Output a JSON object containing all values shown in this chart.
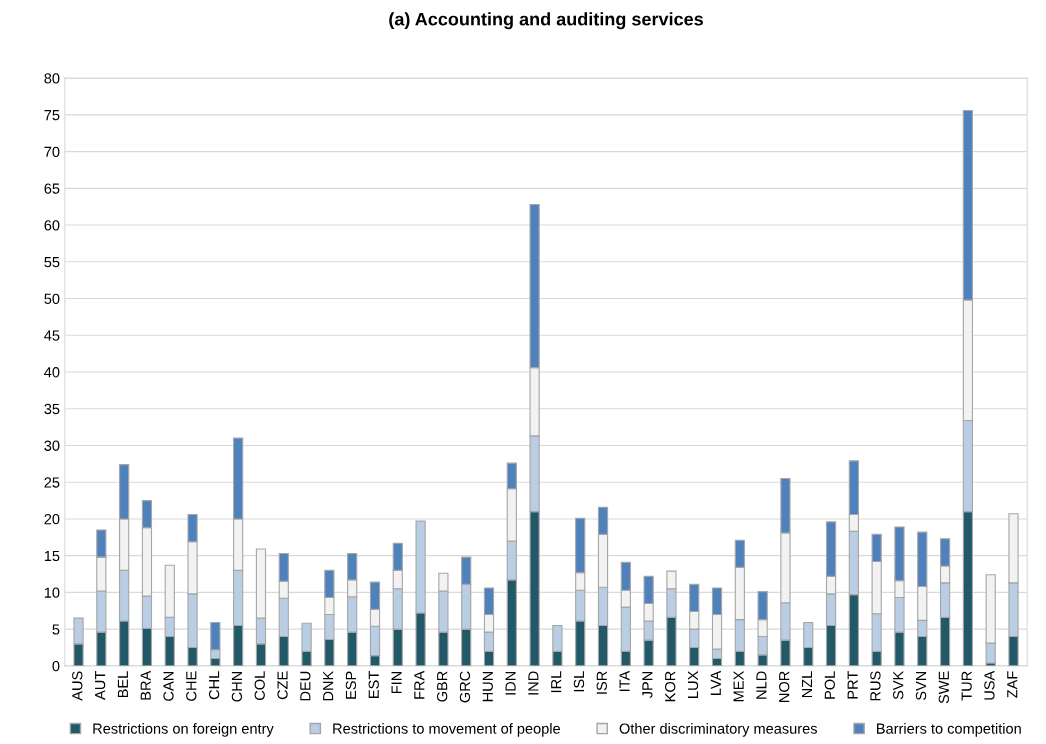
{
  "chart_data": {
    "type": "bar",
    "title": "(a) Accounting and auditing services",
    "stacked": true,
    "categories": [
      "AUS",
      "AUT",
      "BEL",
      "BRA",
      "CAN",
      "CHE",
      "CHL",
      "CHN",
      "COL",
      "CZE",
      "DEU",
      "DNK",
      "ESP",
      "EST",
      "FIN",
      "FRA",
      "GBR",
      "GRC",
      "HUN",
      "IDN",
      "IND",
      "IRL",
      "ISL",
      "ISR",
      "ITA",
      "JPN",
      "KOR",
      "LUX",
      "LVA",
      "MEX",
      "NLD",
      "NOR",
      "NZL",
      "POL",
      "PRT",
      "RUS",
      "SVK",
      "SVN",
      "SWE",
      "TUR",
      "USA",
      "ZAF"
    ],
    "series": [
      {
        "name": "Restrictions on foreign entry",
        "color": "#215968",
        "values": [
          3.0,
          4.6,
          6.1,
          5.1,
          4.0,
          2.5,
          1.0,
          5.5,
          3.0,
          4.0,
          2.0,
          3.6,
          4.6,
          1.4,
          5.0,
          7.2,
          4.6,
          5.0,
          2.0,
          11.7,
          21.0,
          2.0,
          6.1,
          5.5,
          2.0,
          3.5,
          6.6,
          2.5,
          1.0,
          2.0,
          1.5,
          3.5,
          2.5,
          5.5,
          9.7,
          2.0,
          4.6,
          4.0,
          6.6,
          21.0,
          0.4,
          4.0
        ]
      },
      {
        "name": "Restrictions to movement of people",
        "color": "#b9cde5",
        "values": [
          3.5,
          5.6,
          6.9,
          4.4,
          2.6,
          7.3,
          1.2,
          7.5,
          3.5,
          5.2,
          3.8,
          3.4,
          4.8,
          4.0,
          5.5,
          12.5,
          5.6,
          6.1,
          2.6,
          5.3,
          10.3,
          3.5,
          4.2,
          5.2,
          6.0,
          2.6,
          3.9,
          2.5,
          1.3,
          4.3,
          2.5,
          5.1,
          3.4,
          4.3,
          8.6,
          5.1,
          4.7,
          2.2,
          4.7,
          12.4,
          2.7,
          7.3
        ]
      },
      {
        "name": "Other discriminatory measures",
        "color": "#f2f2f2",
        "values": [
          0,
          4.6,
          7.0,
          9.3,
          7.1,
          7.1,
          0,
          7.0,
          9.4,
          2.3,
          0,
          2.3,
          2.3,
          2.3,
          2.5,
          0,
          2.4,
          0,
          2.4,
          7.1,
          9.3,
          0,
          2.4,
          7.2,
          2.3,
          2.4,
          2.4,
          2.4,
          4.7,
          7.1,
          2.3,
          9.5,
          0,
          2.4,
          2.3,
          7.1,
          2.3,
          4.6,
          2.3,
          16.4,
          9.3,
          9.4
        ]
      },
      {
        "name": "Barriers to competition",
        "color": "#4f81bd",
        "values": [
          0,
          3.7,
          7.4,
          3.7,
          0,
          3.7,
          3.7,
          11.0,
          0,
          3.8,
          0,
          3.7,
          3.6,
          3.7,
          3.7,
          0,
          0,
          3.7,
          3.6,
          3.5,
          22.2,
          0,
          7.4,
          3.7,
          3.8,
          3.7,
          0,
          3.7,
          3.6,
          3.7,
          3.8,
          7.4,
          0,
          7.4,
          7.3,
          3.7,
          7.3,
          7.4,
          3.7,
          25.8,
          0,
          0
        ]
      }
    ],
    "ylim": [
      0,
      80
    ],
    "yticks": [
      0,
      5,
      10,
      15,
      20,
      25,
      30,
      35,
      40,
      45,
      50,
      55,
      60,
      65,
      70,
      75,
      80
    ],
    "grid": "y",
    "legend": "bottom"
  }
}
